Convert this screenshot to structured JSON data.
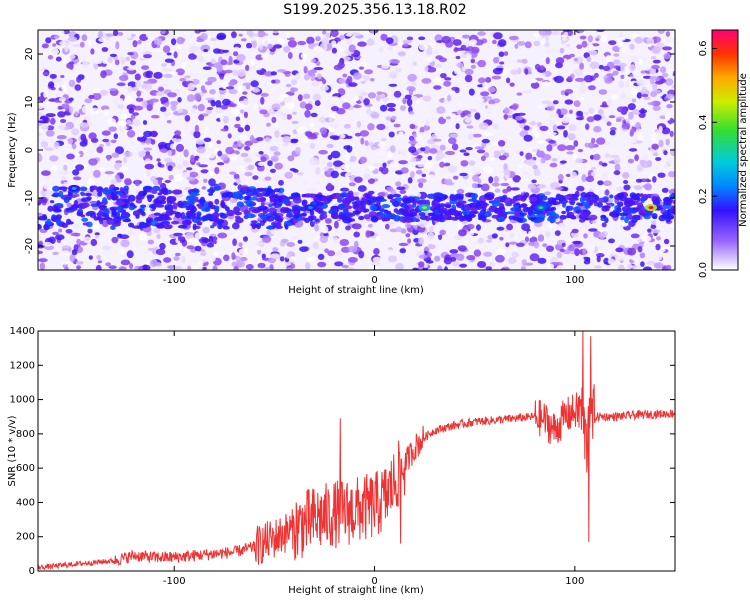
{
  "title": "S199.2025.356.13.18.R02",
  "chart_data": [
    {
      "type": "heatmap",
      "xlabel": "Height of straight line (km)",
      "ylabel": "Frequency (Hz)",
      "xlim": [
        -168,
        150
      ],
      "ylim": [
        -25,
        25
      ],
      "xticks": [
        -100,
        0,
        100
      ],
      "yticks": [
        -20,
        -10,
        0,
        10,
        20
      ],
      "colorbar": {
        "label": "Normalized spectral amplitude",
        "range": [
          0,
          0.65
        ],
        "ticks": [
          0.0,
          0.2,
          0.4,
          0.6
        ]
      },
      "signal_band": {
        "frequency_hz": -12,
        "start_km": -168,
        "end_km": 150,
        "peaks": [
          {
            "x": 25,
            "f": -12,
            "amplitude": 0.3
          },
          {
            "x": 83,
            "f": -12,
            "amplitude": 0.25
          },
          {
            "x": 138,
            "f": -12,
            "amplitude": 0.45
          },
          {
            "x": -150,
            "f": -8,
            "amplitude": 0.2
          },
          {
            "x": -32,
            "f": -12,
            "amplitude": 0.2
          }
        ]
      }
    },
    {
      "type": "line",
      "xlabel": "Height of straight line (km)",
      "ylabel": "SNR (10 * v/v)",
      "xlim": [
        -168,
        150
      ],
      "ylim": [
        0,
        1400
      ],
      "xticks": [
        -100,
        0,
        100
      ],
      "yticks": [
        0,
        200,
        400,
        600,
        800,
        1000,
        1200,
        1400
      ],
      "color": "#ee3333",
      "x": [
        -168,
        -150,
        -130,
        -120,
        -110,
        -100,
        -90,
        -80,
        -70,
        -60,
        -50,
        -40,
        -30,
        -20,
        -10,
        0,
        5,
        10,
        15,
        20,
        25,
        30,
        40,
        50,
        60,
        70,
        80,
        85,
        90,
        95,
        100,
        103,
        105,
        106,
        107,
        108,
        110,
        120,
        130,
        140,
        150
      ],
      "y": [
        20,
        40,
        60,
        90,
        80,
        80,
        90,
        100,
        110,
        140,
        190,
        250,
        300,
        330,
        350,
        380,
        420,
        520,
        620,
        720,
        780,
        820,
        850,
        870,
        880,
        890,
        900,
        880,
        820,
        900,
        930,
        950,
        800,
        700,
        1100,
        900,
        900,
        900,
        910,
        915,
        920
      ],
      "spikes": [
        {
          "x": -17,
          "y": 890
        },
        {
          "x": 13,
          "y": 160
        },
        {
          "x": 104,
          "y": 1420
        },
        {
          "x": 107,
          "y": 170
        },
        {
          "x": 108,
          "y": 1370
        }
      ]
    }
  ]
}
